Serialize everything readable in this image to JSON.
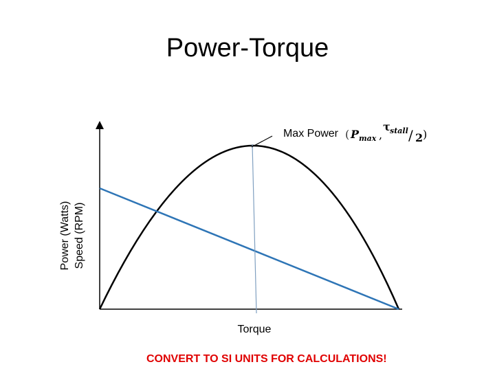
{
  "title": "Power-Torque",
  "y_axis_labels": [
    "Power (Watts)",
    "Speed (RPM)"
  ],
  "x_axis_label": "Torque",
  "annotation": {
    "label": "Max Power",
    "formula": {
      "open": "(",
      "p": "P",
      "p_sub": "max",
      "comma": ",",
      "tau": "τ",
      "tau_sub": "stall",
      "slash": "/",
      "two": "2",
      "close": ")"
    }
  },
  "footer": "CONVERT TO SI UNITS FOR CALCULATIONS!"
}
